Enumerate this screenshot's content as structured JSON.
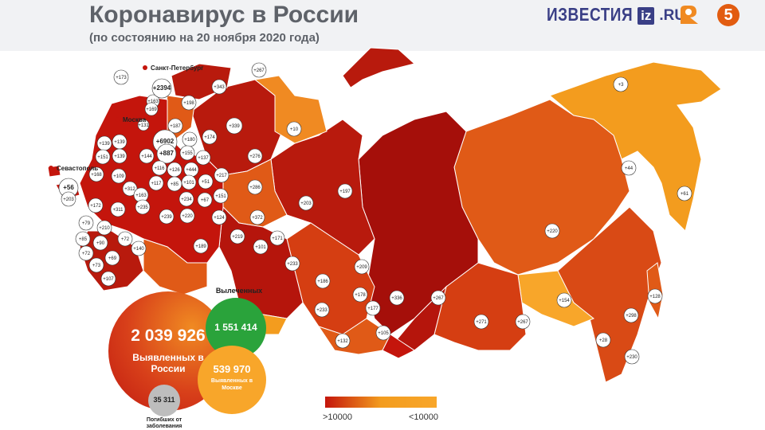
{
  "header": {
    "title": "Коронавирус в России",
    "subtitle": "(по состоянию на 20 ноября 2020 года)"
  },
  "logos": {
    "izvestia_word": "ИЗВЕСТИЯ",
    "iz_box": "iz",
    "iz_tld": ".RU",
    "channel5": "5",
    "ren_icon": "ren-tv-logo-icon"
  },
  "cities": {
    "spb": "Санкт-Петербург",
    "moscow": "Москва",
    "sevastopol": "Севастополь"
  },
  "colors": {
    "dark_red": "#a50f0a",
    "red": "#c42510",
    "red_orange": "#d53e12",
    "orange_dark": "#e05a17",
    "orange": "#f08a22",
    "light_orange": "#f8a52b",
    "circle_fill": "#ffffff",
    "recovered_green": "#2aa33b",
    "deaths_gray": "#bdbdbd"
  },
  "stats": {
    "confirmed_value": "2 039 926",
    "confirmed_label": "Выявленных в России",
    "recovered_title": "Вылеченных",
    "recovered_value": "1 551 414",
    "moscow_value": "539 970",
    "moscow_label": "Выявленных в Москве",
    "deaths_value": "35 311",
    "deaths_label": "Погибших от заболевания"
  },
  "legend": {
    "left": ">10000",
    "right": "<10000"
  },
  "region_labels": [
    "+173",
    "+163",
    "+2394",
    "+198",
    "+169",
    "+343",
    "+267",
    "+131",
    "+187",
    "+339",
    "+180",
    "+139",
    "+139",
    "+6902",
    "+174",
    "+151",
    "+139",
    "+144",
    "+887",
    "+155",
    "+137",
    "+168",
    "+109",
    "+116",
    "+126",
    "+444",
    "+10",
    "+276",
    "+56",
    "+203",
    "+312",
    "+117",
    "+85",
    "+101",
    "+51",
    "+217",
    "+172",
    "+311",
    "+163",
    "+234",
    "+67",
    "+151",
    "+286",
    "+210",
    "+235",
    "+239",
    "+220",
    "+124",
    "+79",
    "+72",
    "+372",
    "+203",
    "+197",
    "+85",
    "+90",
    "+140",
    "+219",
    "+171",
    "+72",
    "+69",
    "+189",
    "+101",
    "+73",
    "+107",
    "+233",
    "+209",
    "+186",
    "+178",
    "+233",
    "+177",
    "+336",
    "+267",
    "+105",
    "+132",
    "+271",
    "+267",
    "+220",
    "+154",
    "+3",
    "+44",
    "+61",
    "+128",
    "+298",
    "+28",
    "+230"
  ]
}
